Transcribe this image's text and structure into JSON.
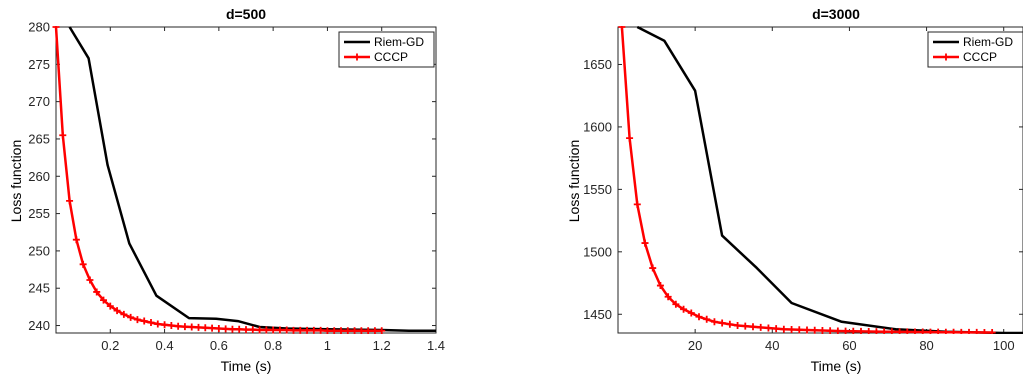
{
  "chart_data": [
    {
      "type": "line",
      "title": "d=500",
      "xlabel": "Time (s)",
      "ylabel": "Loss function",
      "xlim": [
        0,
        1.4
      ],
      "ylim": [
        239,
        280
      ],
      "xticks": [
        0.2,
        0.4,
        0.6,
        0.8,
        1,
        1.2,
        1.4
      ],
      "xtick_labels": [
        "0.2",
        "0.4",
        "0.6",
        "0.8",
        "1",
        "1.2",
        "1.4"
      ],
      "yticks": [
        240,
        245,
        250,
        255,
        260,
        265,
        270,
        275,
        280
      ],
      "ytick_labels": [
        "240",
        "245",
        "250",
        "255",
        "260",
        "265",
        "270",
        "275",
        "280"
      ],
      "grid": false,
      "legend_position": "top-right",
      "series": [
        {
          "name": "Riem-GD",
          "color": "#000000",
          "marker": "none",
          "x": [
            0.05,
            0.12,
            0.19,
            0.27,
            0.37,
            0.49,
            0.59,
            0.67,
            0.75,
            0.85,
            1.0,
            1.2,
            1.3,
            1.4
          ],
          "y": [
            280,
            275.8,
            261.5,
            251,
            244,
            241,
            240.9,
            240.6,
            239.8,
            239.6,
            239.5,
            239.4,
            239.3,
            239.3
          ]
        },
        {
          "name": "CCCP",
          "color": "#ff0000",
          "marker": "plus",
          "x": [
            0.0,
            0.025,
            0.05,
            0.075,
            0.1,
            0.125,
            0.15,
            0.175,
            0.2,
            0.225,
            0.25,
            0.275,
            0.3,
            0.325,
            0.35,
            0.375,
            0.4,
            0.425,
            0.45,
            0.475,
            0.5,
            0.525,
            0.55,
            0.575,
            0.6,
            0.625,
            0.65,
            0.675,
            0.7,
            0.725,
            0.75,
            0.775,
            0.8,
            0.825,
            0.85,
            0.875,
            0.9,
            0.925,
            0.95,
            0.975,
            1.0,
            1.025,
            1.05,
            1.075,
            1.1,
            1.125,
            1.15,
            1.175,
            1.2
          ],
          "y": [
            280.0,
            265.5,
            256.7,
            251.5,
            248.2,
            246.1,
            244.5,
            243.4,
            242.6,
            242.0,
            241.5,
            241.1,
            240.8,
            240.6,
            240.4,
            240.2,
            240.1,
            240.0,
            239.9,
            239.85,
            239.8,
            239.75,
            239.7,
            239.65,
            239.6,
            239.55,
            239.5,
            239.5,
            239.45,
            239.45,
            239.4,
            239.4,
            239.4,
            239.4,
            239.4,
            239.35,
            239.35,
            239.35,
            239.35,
            239.35,
            239.3,
            239.3,
            239.3,
            239.3,
            239.3,
            239.3,
            239.3,
            239.3,
            239.3
          ]
        }
      ]
    },
    {
      "type": "line",
      "title": "d=3000",
      "xlabel": "Time (s)",
      "ylabel": "Loss function",
      "xlim": [
        0,
        105
      ],
      "ylim": [
        1435,
        1680
      ],
      "xticks": [
        20,
        40,
        60,
        80,
        100
      ],
      "xtick_labels": [
        "20",
        "40",
        "60",
        "80",
        "100"
      ],
      "yticks": [
        1450,
        1500,
        1550,
        1600,
        1650
      ],
      "ytick_labels": [
        "1450",
        "1500",
        "1550",
        "1600",
        "1650"
      ],
      "grid": false,
      "legend_position": "top-right",
      "series": [
        {
          "name": "Riem-GD",
          "color": "#000000",
          "marker": "none",
          "x": [
            5,
            12,
            20,
            27,
            36,
            45,
            58,
            72,
            85,
            100,
            105
          ],
          "y": [
            1680,
            1669,
            1629,
            1513,
            1487,
            1459,
            1444,
            1438,
            1436,
            1435,
            1435
          ]
        },
        {
          "name": "CCCP",
          "color": "#ff0000",
          "marker": "plus",
          "x": [
            1,
            3,
            5,
            7,
            9,
            11,
            13,
            15,
            17,
            19,
            21,
            23,
            25,
            27,
            29,
            31,
            33,
            35,
            37,
            39,
            41,
            43,
            45,
            47,
            49,
            51,
            53,
            55,
            57,
            59,
            61,
            63,
            65,
            67,
            69,
            71,
            73,
            75,
            77,
            79,
            81,
            83,
            85,
            87,
            89,
            91,
            93,
            95,
            97
          ],
          "y": [
            1680,
            1591,
            1538,
            1507,
            1487,
            1473,
            1464,
            1458,
            1454,
            1451,
            1448,
            1446,
            1444,
            1443,
            1442,
            1441,
            1440.5,
            1440,
            1439.5,
            1439,
            1438.5,
            1438,
            1437.8,
            1437.6,
            1437.4,
            1437.2,
            1437,
            1436.8,
            1436.6,
            1436.5,
            1436.4,
            1436.3,
            1436.2,
            1436.1,
            1436,
            1436,
            1435.9,
            1435.9,
            1435.8,
            1435.8,
            1435.7,
            1435.7,
            1435.6,
            1435.6,
            1435.5,
            1435.5,
            1435.5,
            1435.4,
            1435.4
          ]
        }
      ]
    }
  ]
}
